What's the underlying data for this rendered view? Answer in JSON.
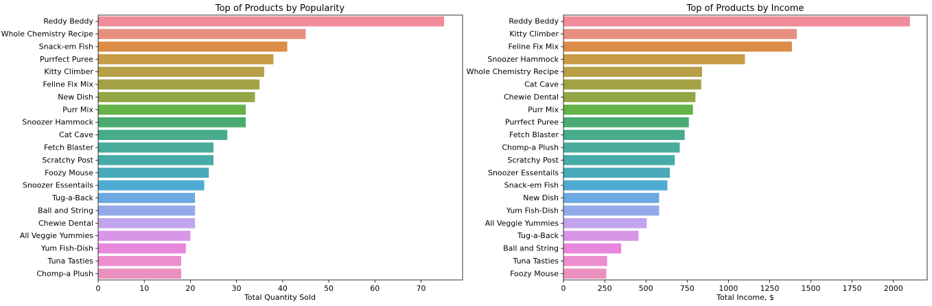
{
  "chart_data": [
    {
      "type": "bar",
      "orientation": "horizontal",
      "title": "Top of Products by Popularity",
      "xlabel": "Total Quantity Sold",
      "ylabel": "",
      "xlim": [
        0,
        79
      ],
      "xticks": [
        0,
        10,
        20,
        30,
        40,
        50,
        60,
        70
      ],
      "categories": [
        "Reddy Beddy",
        "Whole Chemistry Recipe",
        "Snack-em Fish",
        "Purrfect Puree",
        "Kitty Climber",
        "Feline Fix Mix",
        "New Dish",
        "Purr Mix",
        "Snoozer Hammock",
        "Cat Cave",
        "Fetch Blaster",
        "Scratchy Post",
        "Foozy Mouse",
        "Snoozer Essentails",
        "Tug-a-Back",
        "Ball and String",
        "Chewie Dental",
        "All Veggie Yummies",
        "Yum Fish-Dish",
        "Tuna Tasties",
        "Chomp-a Plush"
      ],
      "values": [
        75,
        45,
        41,
        38,
        36,
        35,
        34,
        32,
        32,
        28,
        25,
        25,
        24,
        23,
        21,
        21,
        21,
        20,
        19,
        18,
        18
      ]
    },
    {
      "type": "bar",
      "orientation": "horizontal",
      "title": "Top of Products by Income",
      "xlabel": "Total Income, $",
      "ylabel": "",
      "xlim": [
        0,
        2205
      ],
      "xticks": [
        0,
        250,
        500,
        750,
        1000,
        1250,
        1500,
        1750,
        2000
      ],
      "categories": [
        "Reddy Beddy",
        "Kitty Climber",
        "Feline Fix Mix",
        "Snoozer Hammock",
        "Whole Chemistry Recipe",
        "Cat Cave",
        "Chewie Dental",
        "Purr Mix",
        "Purrfect Puree",
        "Fetch Blaster",
        "Chomp-a Plush",
        "Scratchy Post",
        "Snoozer Essentails",
        "Snack-em Fish",
        "New Dish",
        "Yum Fish-Dish",
        "All Veggie Yummies",
        "Tug-a-Back",
        "Ball and String",
        "Tuna Tasties",
        "Foozy Mouse"
      ],
      "values": [
        2100,
        1415,
        1385,
        1100,
        840,
        835,
        800,
        785,
        760,
        735,
        705,
        675,
        645,
        630,
        580,
        580,
        505,
        455,
        350,
        265,
        260
      ]
    }
  ],
  "colors": [
    "#f08c9a",
    "#e89080",
    "#db8c46",
    "#c89b47",
    "#b7a048",
    "#a3a146",
    "#93a645",
    "#63b24a",
    "#49ab72",
    "#47ab8c",
    "#49ab9b",
    "#49aba8",
    "#49aab9",
    "#4fabd2",
    "#6aaae0",
    "#93aae8",
    "#c2a5ec",
    "#d896e8",
    "#e887dc",
    "#ec8dcd",
    "#ec90c0"
  ]
}
